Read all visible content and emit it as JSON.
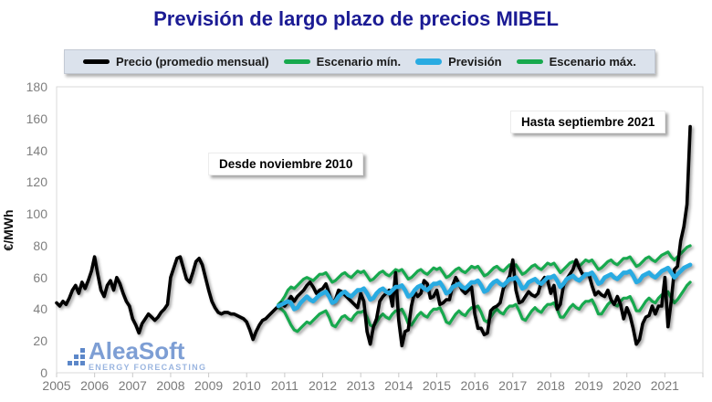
{
  "title": "Previsión de largo plazo de precios MIBEL",
  "legend": {
    "items": [
      {
        "label": "Precio (promedio mensual)",
        "series": "precio"
      },
      {
        "label": "Escenario mín.",
        "series": "escenario_min"
      },
      {
        "label": "Previsión",
        "series": "prevision"
      },
      {
        "label": "Escenario máx.",
        "series": "escenario_max"
      }
    ]
  },
  "annotations": {
    "note_from": {
      "text": "Desde noviembre 2010"
    },
    "note_to": {
      "text": "Hasta septiembre 2021"
    }
  },
  "logo": {
    "name": "AleaSoft",
    "subtitle": "ENERGY FORECASTING"
  },
  "colors": {
    "title": "#1b1b94",
    "precio": "#000000",
    "escenario": "#17a94e",
    "prevision": "#29abe2",
    "axis_text": "#7f7f7f",
    "legend_bg": "#dbe2ec"
  },
  "chart_data": {
    "type": "line",
    "title": "Previsión de largo plazo de precios MIBEL",
    "xlabel": "",
    "ylabel": "€/MWh",
    "ylim": [
      0,
      180
    ],
    "y_ticks": [
      0,
      20,
      40,
      60,
      80,
      100,
      120,
      140,
      160,
      180
    ],
    "x_tick_labels": [
      "2005",
      "2006",
      "2007",
      "2008",
      "2009",
      "2010",
      "2011",
      "2012",
      "2013",
      "2014",
      "2015",
      "2016",
      "2017",
      "2018",
      "2019",
      "2020",
      "2021"
    ],
    "x_unit": "month",
    "months_total": 204,
    "grid": false,
    "legend_position": "top",
    "series": [
      {
        "id": "escenario_max",
        "name": "Escenario máx.",
        "color": "#17a94e",
        "width": 3.2,
        "start": "2010-11",
        "end": "2021-09",
        "start_month": 70,
        "values": [
          43,
          45,
          48,
          52,
          54,
          53,
          55,
          57,
          59,
          60,
          59,
          58,
          60,
          62,
          62,
          63,
          60,
          57,
          58,
          60,
          62,
          63,
          61,
          60,
          62,
          64,
          63,
          64,
          61,
          58,
          59,
          61,
          63,
          64,
          62,
          61,
          63,
          65,
          64,
          65,
          62,
          59,
          60,
          62,
          64,
          65,
          63,
          62,
          64,
          66,
          65,
          66,
          63,
          60,
          61,
          63,
          65,
          66,
          64,
          63,
          65,
          67,
          66,
          67,
          64,
          61,
          62,
          64,
          66,
          67,
          65,
          64,
          66,
          68,
          67,
          68,
          65,
          62,
          63,
          65,
          67,
          68,
          66,
          65,
          67,
          69,
          68,
          69,
          66,
          63,
          65,
          67,
          69,
          70,
          68,
          67,
          69,
          71,
          70,
          71,
          68,
          65,
          66,
          68,
          70,
          71,
          69,
          68,
          70,
          72,
          72,
          73,
          70,
          67,
          68,
          70,
          72,
          73,
          71,
          70,
          72,
          74,
          75,
          76,
          73,
          71,
          73,
          75,
          77,
          79,
          80
        ]
      },
      {
        "id": "escenario_min",
        "name": "Escenario mín.",
        "color": "#17a94e",
        "width": 3.2,
        "start": "2010-11",
        "end": "2021-09",
        "start_month": 70,
        "values": [
          41,
          40,
          38,
          34,
          30,
          27,
          26,
          28,
          30,
          32,
          31,
          33,
          35,
          37,
          38,
          39,
          35,
          30,
          29,
          32,
          35,
          36,
          34,
          33,
          36,
          38,
          38,
          39,
          35,
          30,
          29,
          32,
          35,
          37,
          35,
          34,
          37,
          39,
          39,
          40,
          36,
          31,
          30,
          33,
          36,
          38,
          36,
          35,
          38,
          40,
          40,
          41,
          37,
          32,
          31,
          34,
          37,
          39,
          37,
          36,
          39,
          41,
          41,
          42,
          38,
          33,
          32,
          35,
          38,
          40,
          38,
          37,
          40,
          42,
          42,
          43,
          39,
          34,
          33,
          36,
          39,
          41,
          39,
          38,
          41,
          43,
          43,
          44,
          40,
          35,
          35,
          38,
          41,
          43,
          41,
          40,
          43,
          45,
          45,
          46,
          42,
          37,
          37,
          40,
          43,
          45,
          43,
          42,
          45,
          47,
          47,
          48,
          44,
          39,
          39,
          42,
          45,
          47,
          45,
          44,
          47,
          49,
          50,
          51,
          47,
          44,
          46,
          49,
          52,
          55,
          57
        ]
      },
      {
        "id": "precio",
        "name": "Precio (promedio mensual)",
        "color": "#000000",
        "width": 3.6,
        "start": "2005-01",
        "end": "2021-09",
        "start_month": 0,
        "values": [
          44,
          42,
          45,
          43,
          47,
          52,
          55,
          50,
          57,
          53,
          58,
          64,
          73,
          62,
          52,
          48,
          55,
          58,
          52,
          60,
          56,
          50,
          45,
          42,
          34,
          30,
          25,
          31,
          34,
          37,
          35,
          33,
          35,
          38,
          40,
          43,
          60,
          66,
          72,
          73,
          66,
          59,
          57,
          63,
          70,
          72,
          68,
          60,
          52,
          45,
          41,
          38,
          37,
          38,
          38,
          37,
          37,
          36,
          35,
          34,
          32,
          27,
          21,
          26,
          30,
          33,
          34,
          36,
          38,
          40,
          42,
          44,
          42,
          45,
          48,
          45,
          48,
          50,
          52,
          55,
          57,
          54,
          50,
          52,
          53,
          56,
          50,
          44,
          46,
          52,
          51,
          49,
          47,
          45,
          43,
          41,
          50,
          45,
          26,
          18,
          29,
          34,
          45,
          48,
          50,
          52,
          42,
          63,
          33,
          17,
          26,
          27,
          42,
          51,
          48,
          50,
          58,
          56,
          47,
          48,
          52,
          43,
          44,
          46,
          46,
          55,
          60,
          56,
          52,
          50,
          52,
          54,
          37,
          28,
          28,
          24,
          25,
          39,
          41,
          42,
          44,
          53,
          57,
          61,
          71,
          52,
          44,
          45,
          48,
          51,
          49,
          48,
          50,
          57,
          60,
          58,
          50,
          55,
          40,
          43,
          55,
          59,
          62,
          65,
          71,
          66,
          62,
          62,
          62,
          55,
          49,
          51,
          49,
          48,
          52,
          46,
          43,
          48,
          43,
          34,
          41,
          36,
          28,
          18,
          21,
          31,
          35,
          36,
          42,
          37,
          42,
          42,
          60,
          29,
          45,
          65,
          67,
          83,
          92,
          106,
          155
        ]
      },
      {
        "id": "prevision",
        "name": "Previsión",
        "color": "#29abe2",
        "width": 4.6,
        "start": "2010-11",
        "end": "2021-09",
        "start_month": 70,
        "values": [
          42,
          43,
          44,
          45,
          44,
          40,
          41,
          44,
          46,
          48,
          46,
          45,
          47,
          49,
          50,
          51,
          48,
          44,
          45,
          48,
          50,
          51,
          49,
          48,
          50,
          52,
          52,
          53,
          50,
          46,
          47,
          50,
          52,
          53,
          51,
          50,
          52,
          54,
          54,
          55,
          52,
          48,
          49,
          52,
          54,
          55,
          53,
          52,
          54,
          56,
          56,
          57,
          54,
          50,
          51,
          54,
          55,
          56,
          54,
          53,
          55,
          57,
          57,
          58,
          55,
          51,
          52,
          55,
          57,
          58,
          56,
          55,
          57,
          59,
          59,
          60,
          57,
          53,
          54,
          57,
          58,
          59,
          57,
          56,
          58,
          60,
          60,
          61,
          58,
          54,
          56,
          59,
          60,
          61,
          59,
          58,
          60,
          62,
          62,
          63,
          60,
          56,
          57,
          60,
          61,
          62,
          60,
          59,
          61,
          63,
          63,
          64,
          61,
          57,
          58,
          61,
          62,
          63,
          61,
          60,
          62,
          64,
          65,
          66,
          63,
          60,
          62,
          64,
          66,
          67,
          68
        ]
      }
    ]
  }
}
